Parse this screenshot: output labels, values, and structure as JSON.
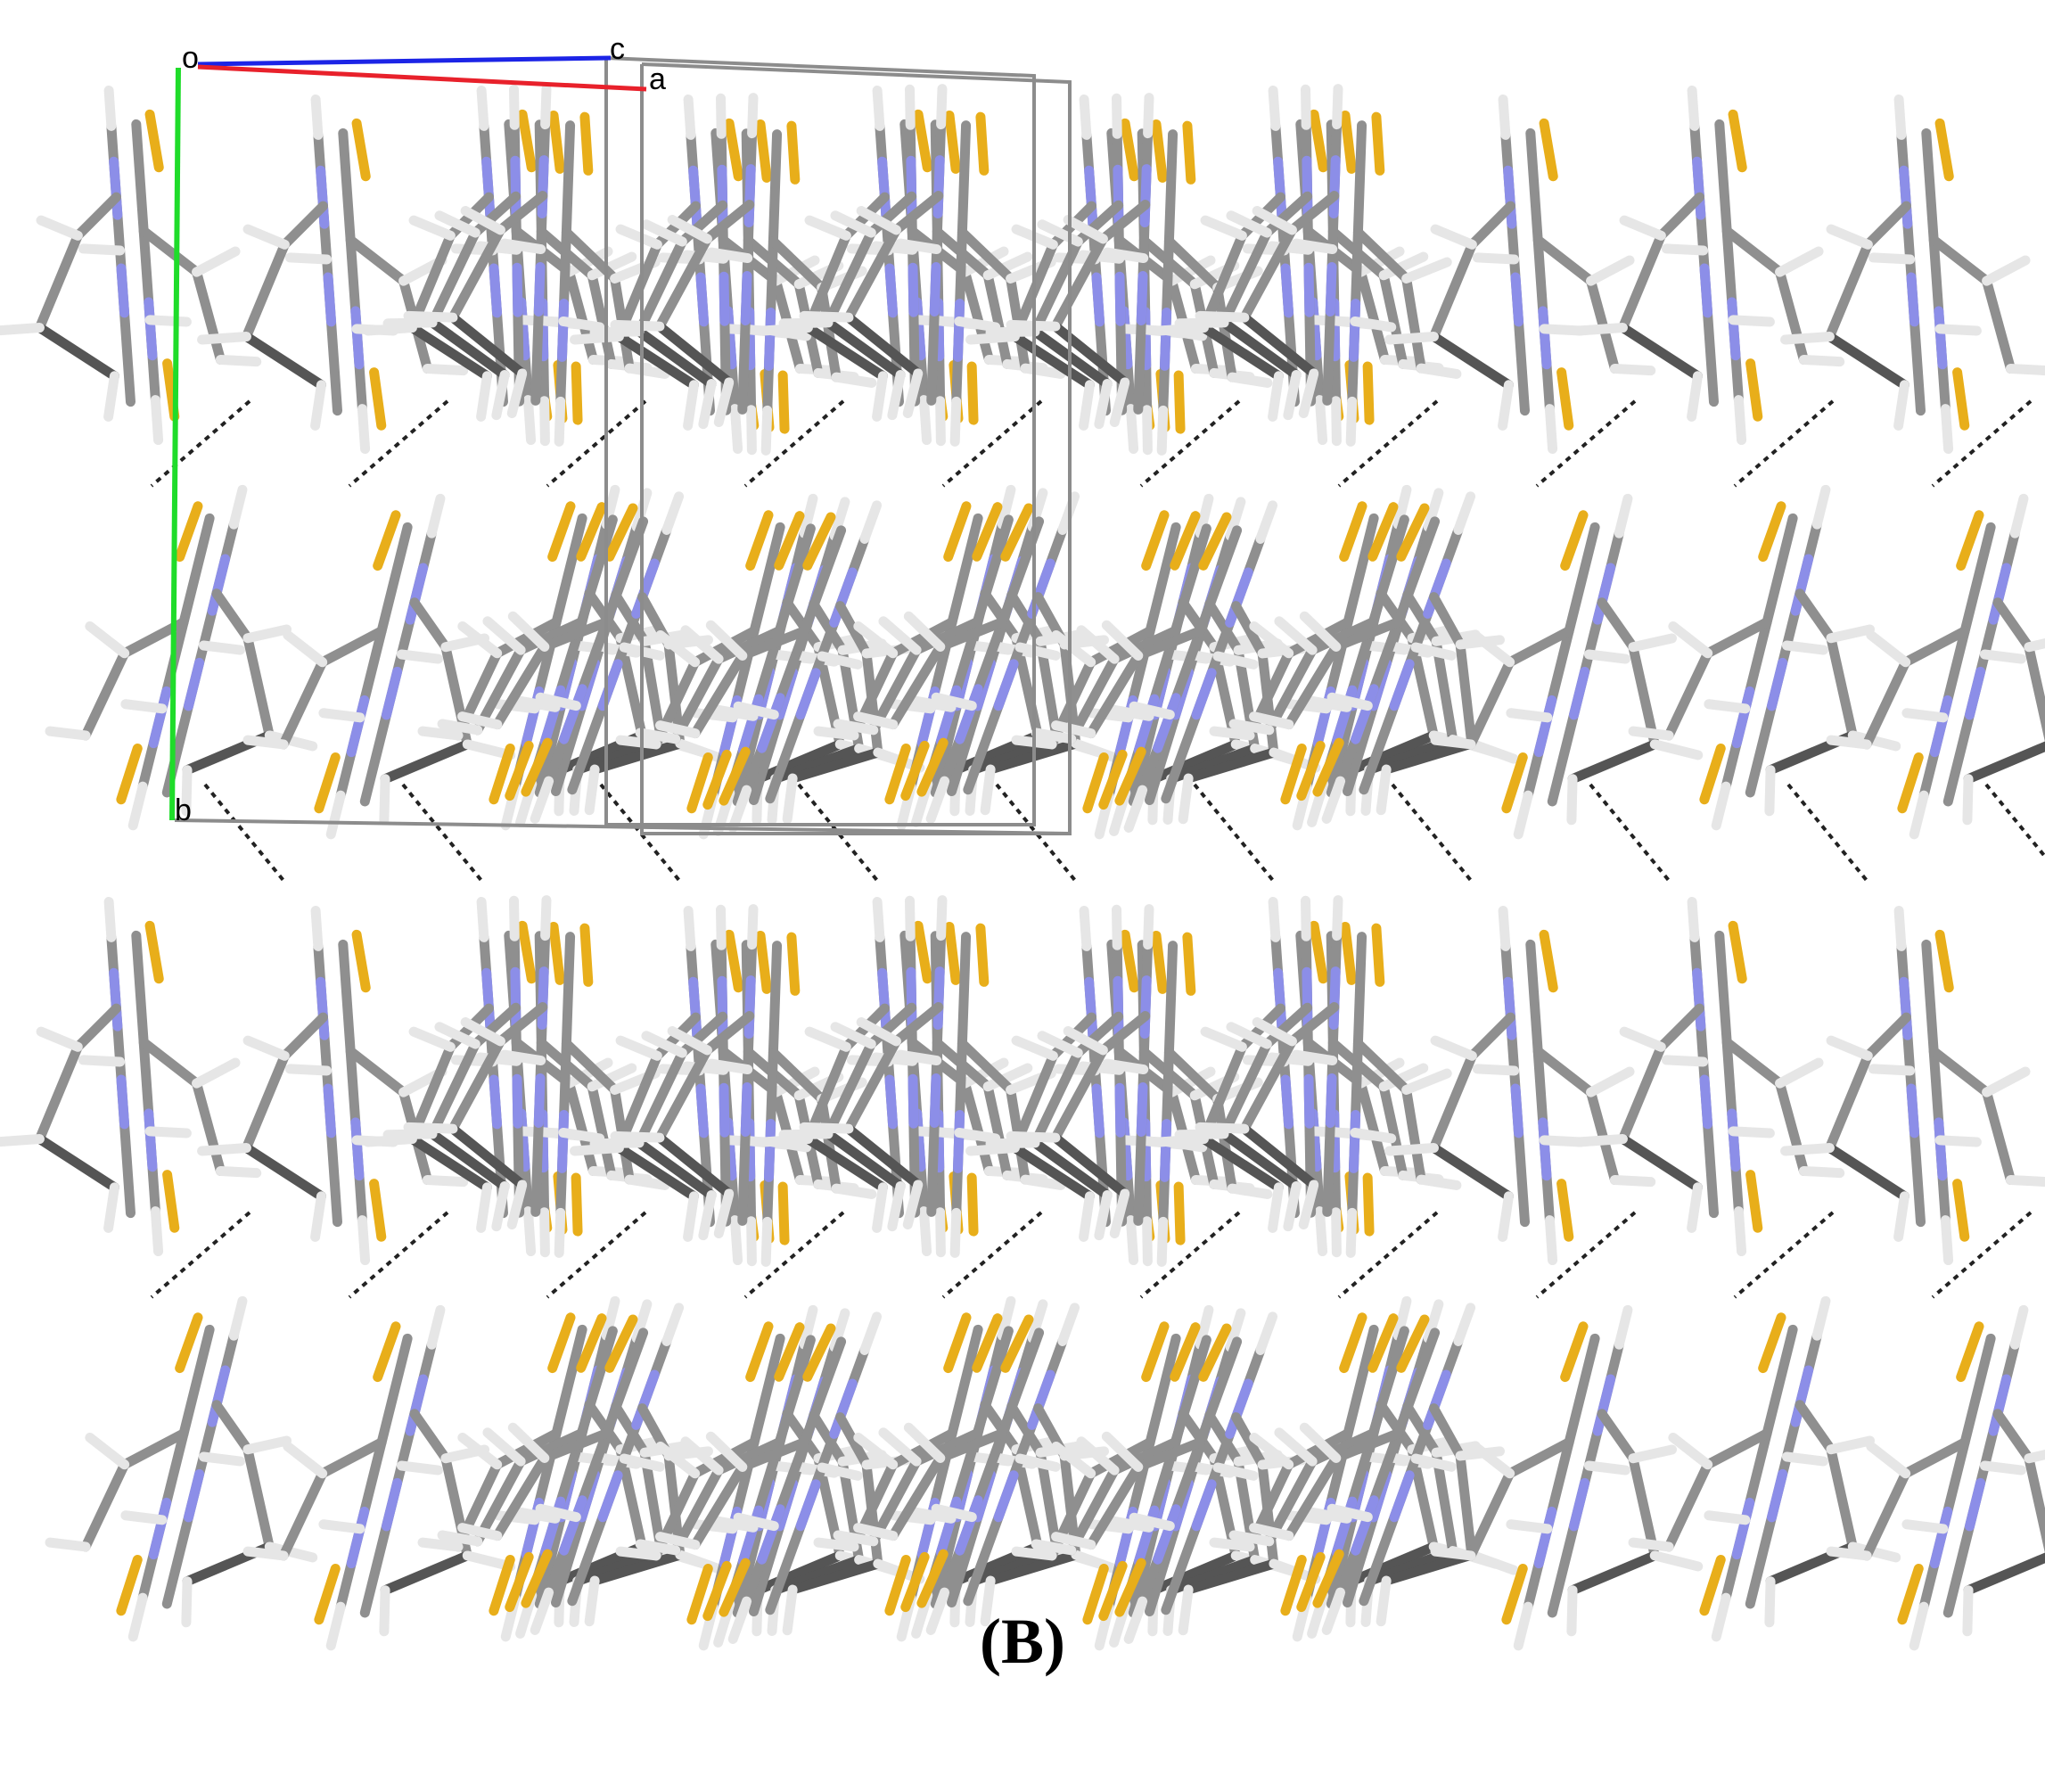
{
  "axes": {
    "origin_label": "o",
    "a_label": "a",
    "b_label": "b",
    "c_label": "c",
    "a_color": "#e8212b",
    "b_color": "#1fdc2a",
    "c_color": "#1c24e6",
    "cell_color": "#8c8c8c"
  },
  "palette": {
    "carbon": "#8f8f8f",
    "carbon_dark": "#555555",
    "hydrogen": "#e6e6e6",
    "nitrogen": "#8c8ee8",
    "sulfur": "#e8ae1a",
    "hbond": "#222222"
  },
  "packing": {
    "columns": 10,
    "rows": 2,
    "molecule_types": [
      "single",
      "single",
      "stack",
      "stack",
      "stack",
      "stack",
      "stack",
      "single",
      "single",
      "single"
    ]
  },
  "caption": "(B)"
}
